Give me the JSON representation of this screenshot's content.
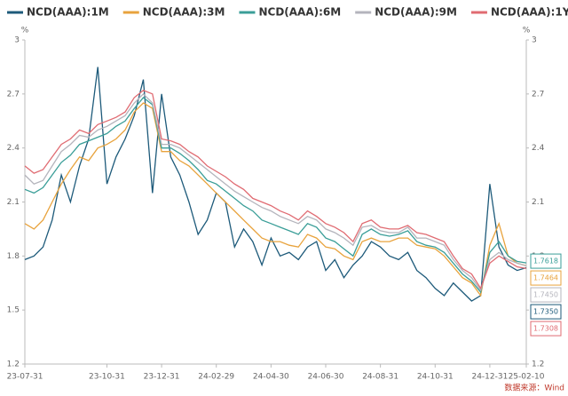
{
  "chart_data": {
    "type": "line",
    "y_unit": "%",
    "y2_unit": "%",
    "source": "数据来源：Wind",
    "categories": [
      "23-07-31",
      null,
      null,
      null,
      null,
      null,
      null,
      null,
      null,
      "23-10-31",
      null,
      null,
      null,
      null,
      null,
      "23-12-31",
      null,
      null,
      null,
      null,
      null,
      "24-02-29",
      null,
      null,
      null,
      null,
      null,
      "24-04-30",
      null,
      null,
      null,
      null,
      null,
      "24-06-30",
      null,
      null,
      null,
      null,
      null,
      "24-08-31",
      null,
      null,
      null,
      null,
      null,
      "24-10-31",
      null,
      null,
      null,
      null,
      null,
      "24-12-31",
      null,
      null,
      null,
      "25-02-10"
    ],
    "ylim": [
      1.2,
      3
    ],
    "yticks": [
      1.2,
      1.5,
      1.8,
      2.1,
      2.4,
      2.7,
      3
    ],
    "y2lim": [
      1.2,
      3
    ],
    "y2ticks": [
      1.2,
      1.5,
      1.8,
      2.1,
      2.4,
      2.7,
      3
    ],
    "grid": false,
    "legend": "top",
    "series": [
      {
        "name": "NCD(AAA):1M",
        "color": "#1d5a7a",
        "values": [
          1.78,
          1.8,
          1.85,
          2.0,
          2.25,
          2.1,
          2.3,
          2.45,
          2.85,
          2.2,
          2.35,
          2.45,
          2.58,
          2.78,
          2.15,
          2.7,
          2.35,
          2.25,
          2.1,
          1.92,
          2.0,
          2.15,
          2.1,
          1.85,
          1.95,
          1.88,
          1.75,
          1.9,
          1.8,
          1.82,
          1.78,
          1.85,
          1.88,
          1.72,
          1.78,
          1.68,
          1.75,
          1.8,
          1.88,
          1.85,
          1.8,
          1.78,
          1.82,
          1.72,
          1.68,
          1.62,
          1.58,
          1.65,
          1.6,
          1.55,
          1.58,
          2.2,
          1.85,
          1.75,
          1.72,
          1.735
        ],
        "value_labels": [
          null,
          null,
          null,
          null,
          null,
          null,
          null,
          null,
          null,
          null,
          null,
          null,
          null,
          null,
          null,
          null,
          null,
          null,
          null,
          null,
          null,
          null,
          null,
          null,
          null,
          null,
          null,
          null,
          null,
          null,
          null,
          null,
          null,
          null,
          null,
          null,
          null,
          null,
          null,
          null,
          null,
          null,
          null,
          null,
          null,
          null,
          null,
          null,
          null,
          null,
          null,
          null,
          null,
          null,
          null,
          "1.7350"
        ]
      },
      {
        "name": "NCD(AAA):3M",
        "color": "#e8a33d",
        "values": [
          1.98,
          1.95,
          2.0,
          2.1,
          2.2,
          2.28,
          2.35,
          2.33,
          2.4,
          2.42,
          2.45,
          2.5,
          2.6,
          2.65,
          2.62,
          2.38,
          2.38,
          2.33,
          2.3,
          2.25,
          2.2,
          2.15,
          2.1,
          2.05,
          2.0,
          1.95,
          1.9,
          1.88,
          1.88,
          1.86,
          1.85,
          1.92,
          1.9,
          1.85,
          1.84,
          1.8,
          1.78,
          1.88,
          1.9,
          1.88,
          1.88,
          1.9,
          1.9,
          1.86,
          1.85,
          1.84,
          1.8,
          1.74,
          1.68,
          1.65,
          1.58,
          1.86,
          1.98,
          1.8,
          1.76,
          1.7464
        ],
        "value_labels": [
          null,
          null,
          null,
          null,
          null,
          null,
          null,
          null,
          null,
          null,
          null,
          null,
          null,
          null,
          null,
          null,
          null,
          null,
          null,
          null,
          null,
          null,
          null,
          null,
          null,
          null,
          null,
          null,
          null,
          null,
          null,
          null,
          null,
          null,
          null,
          null,
          null,
          null,
          null,
          null,
          null,
          null,
          null,
          null,
          null,
          null,
          null,
          null,
          null,
          null,
          null,
          null,
          null,
          null,
          null,
          "1.7464"
        ]
      },
      {
        "name": "NCD(AAA):6M",
        "color": "#3a9e98",
        "values": [
          2.17,
          2.15,
          2.18,
          2.25,
          2.32,
          2.36,
          2.42,
          2.44,
          2.46,
          2.48,
          2.52,
          2.55,
          2.62,
          2.68,
          2.64,
          2.4,
          2.4,
          2.37,
          2.33,
          2.28,
          2.22,
          2.2,
          2.16,
          2.12,
          2.08,
          2.05,
          2.0,
          1.98,
          1.96,
          1.94,
          1.92,
          1.98,
          1.96,
          1.9,
          1.88,
          1.84,
          1.8,
          1.92,
          1.95,
          1.92,
          1.91,
          1.92,
          1.94,
          1.88,
          1.86,
          1.85,
          1.82,
          1.76,
          1.7,
          1.66,
          1.6,
          1.82,
          1.88,
          1.8,
          1.77,
          1.7618
        ],
        "value_labels": [
          null,
          null,
          null,
          null,
          null,
          null,
          null,
          null,
          null,
          null,
          null,
          null,
          null,
          null,
          null,
          null,
          null,
          null,
          null,
          null,
          null,
          null,
          null,
          null,
          null,
          null,
          null,
          null,
          null,
          null,
          null,
          null,
          null,
          null,
          null,
          null,
          null,
          null,
          null,
          null,
          null,
          null,
          null,
          null,
          null,
          null,
          null,
          null,
          null,
          null,
          null,
          null,
          null,
          null,
          null,
          "1.7618"
        ]
      },
      {
        "name": "NCD(AAA):9M",
        "color": "#b4b4bc",
        "values": [
          2.25,
          2.2,
          2.22,
          2.3,
          2.38,
          2.42,
          2.47,
          2.46,
          2.5,
          2.52,
          2.55,
          2.58,
          2.65,
          2.7,
          2.65,
          2.42,
          2.42,
          2.4,
          2.36,
          2.32,
          2.28,
          2.24,
          2.2,
          2.16,
          2.13,
          2.1,
          2.07,
          2.05,
          2.02,
          2.0,
          1.98,
          2.02,
          2.0,
          1.95,
          1.93,
          1.9,
          1.86,
          1.96,
          1.97,
          1.94,
          1.93,
          1.93,
          1.96,
          1.9,
          1.9,
          1.88,
          1.86,
          1.78,
          1.72,
          1.68,
          1.61,
          1.78,
          1.82,
          1.78,
          1.76,
          1.745
        ],
        "value_labels": [
          null,
          null,
          null,
          null,
          null,
          null,
          null,
          null,
          null,
          null,
          null,
          null,
          null,
          null,
          null,
          null,
          null,
          null,
          null,
          null,
          null,
          null,
          null,
          null,
          null,
          null,
          null,
          null,
          null,
          null,
          null,
          null,
          null,
          null,
          null,
          null,
          null,
          null,
          null,
          null,
          null,
          null,
          null,
          null,
          null,
          null,
          null,
          null,
          null,
          null,
          null,
          null,
          null,
          null,
          null,
          "1.7450"
        ]
      },
      {
        "name": "NCD(AAA):1Y",
        "color": "#e06b72",
        "values": [
          2.3,
          2.26,
          2.28,
          2.35,
          2.42,
          2.45,
          2.5,
          2.48,
          2.53,
          2.55,
          2.57,
          2.6,
          2.68,
          2.72,
          2.7,
          2.45,
          2.44,
          2.42,
          2.38,
          2.35,
          2.3,
          2.27,
          2.24,
          2.2,
          2.17,
          2.12,
          2.1,
          2.08,
          2.05,
          2.03,
          2.0,
          2.05,
          2.02,
          1.98,
          1.96,
          1.93,
          1.88,
          1.98,
          2.0,
          1.96,
          1.95,
          1.95,
          1.97,
          1.93,
          1.92,
          1.9,
          1.88,
          1.8,
          1.73,
          1.7,
          1.62,
          1.76,
          1.8,
          1.77,
          1.74,
          1.7308
        ],
        "value_labels": [
          null,
          null,
          null,
          null,
          null,
          null,
          null,
          null,
          null,
          null,
          null,
          null,
          null,
          null,
          null,
          null,
          null,
          null,
          null,
          null,
          null,
          null,
          null,
          null,
          null,
          null,
          null,
          null,
          null,
          null,
          null,
          null,
          null,
          null,
          null,
          null,
          null,
          null,
          null,
          null,
          null,
          null,
          null,
          null,
          null,
          null,
          null,
          null,
          null,
          null,
          null,
          null,
          null,
          null,
          null,
          "1.7308"
        ]
      }
    ]
  }
}
